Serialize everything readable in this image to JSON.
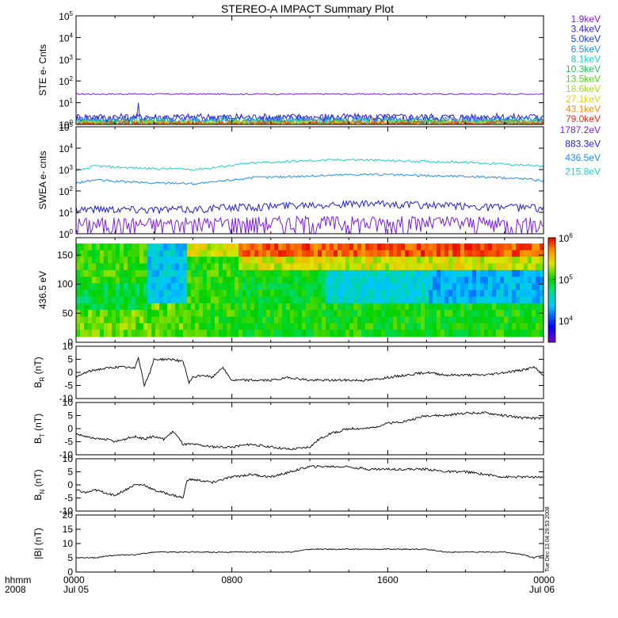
{
  "chart_data": {
    "type": "line",
    "title": "STEREO-A IMPACT Summary Plot",
    "x_axis": {
      "label_left": [
        "hhmm",
        "2008"
      ],
      "tick_times": [
        "0000",
        "0800",
        "1600",
        "0000"
      ],
      "tick_dates": [
        "Jul 05",
        "",
        "",
        "Jul 06"
      ],
      "range_hours": [
        0,
        24
      ]
    },
    "side_label": "Tue Dec 13 04:29:53 2008",
    "panels": [
      {
        "id": "ste",
        "ylabel": "STE e- Cnts",
        "scale": "log",
        "ylim": [
          1,
          100000
        ],
        "ticks": [
          {
            "b": "10",
            "e": "0"
          },
          {
            "b": "10",
            "e": "1"
          },
          {
            "b": "10",
            "e": "2"
          },
          {
            "b": "10",
            "e": "3"
          },
          {
            "b": "10",
            "e": "4"
          },
          {
            "b": "10",
            "e": "5"
          }
        ],
        "legend": [
          {
            "name": "1.9keV",
            "color": "#7a1fd8"
          },
          {
            "name": "3.4keV",
            "color": "#3a1fd0"
          },
          {
            "name": "5.0keV",
            "color": "#1f3ad8"
          },
          {
            "name": "6.5keV",
            "color": "#1f8fe0"
          },
          {
            "name": "8.1keV",
            "color": "#1fd0c8"
          },
          {
            "name": "10.3keV",
            "color": "#1fc85a"
          },
          {
            "name": "13.5keV",
            "color": "#4fd01f"
          },
          {
            "name": "18.6keV",
            "color": "#a8d81f"
          },
          {
            "name": "27.1keV",
            "color": "#e0d01f"
          },
          {
            "name": "43.1keV",
            "color": "#e8901f"
          },
          {
            "name": "79.0keV",
            "color": "#e0301f"
          }
        ],
        "series_levels": [
          25,
          2.2,
          1.8,
          1.5,
          1.3,
          1.2,
          1.1,
          1.05,
          1.02,
          1.01,
          1.0
        ]
      },
      {
        "id": "swea",
        "ylabel": "SWEA e- cnts",
        "scale": "log",
        "ylim": [
          1,
          100000
        ],
        "ticks": [
          {
            "b": "10",
            "e": "0"
          },
          {
            "b": "10",
            "e": "1"
          },
          {
            "b": "10",
            "e": "2"
          },
          {
            "b": "10",
            "e": "3"
          },
          {
            "b": "10",
            "e": "4"
          },
          {
            "b": "10",
            "e": "5"
          }
        ],
        "legend": [
          {
            "name": "1787.2eV",
            "color": "#7a1fd8"
          },
          {
            "name": "883.3eV",
            "color": "#1f1fc8"
          },
          {
            "name": "436.5eV",
            "color": "#1f8fe0"
          },
          {
            "name": "215.8eV",
            "color": "#1fd0c8"
          }
        ],
        "series": [
          {
            "name": "1787.2eV",
            "x": [
              0,
              2,
              4,
              6,
              8,
              10,
              12,
              14,
              16,
              18,
              20,
              22,
              24
            ],
            "y": [
              3,
              3,
              3,
              3,
              3.5,
              3.5,
              3.5,
              3.5,
              3.5,
              3.5,
              3.5,
              3,
              3
            ]
          },
          {
            "name": "883.3eV",
            "x": [
              0,
              2,
              4,
              6,
              8,
              10,
              12,
              14,
              16,
              18,
              20,
              22,
              24
            ],
            "y": [
              15,
              15,
              14,
              14,
              18,
              20,
              25,
              25,
              25,
              22,
              20,
              18,
              17
            ]
          },
          {
            "name": "436.5eV",
            "x": [
              0,
              0.5,
              1,
              2,
              3,
              4,
              5,
              6,
              7,
              8,
              9,
              10,
              11,
              12,
              13,
              14,
              15,
              16,
              17,
              18,
              19,
              20,
              21,
              22,
              23,
              24
            ],
            "y": [
              230,
              280,
              330,
              280,
              260,
              230,
              240,
              220,
              250,
              330,
              420,
              440,
              470,
              500,
              540,
              580,
              600,
              570,
              540,
              520,
              500,
              480,
              450,
              400,
              380,
              300
            ]
          },
          {
            "name": "215.8eV",
            "x": [
              0,
              0.5,
              1,
              2,
              3,
              4,
              5,
              6,
              7,
              8,
              9,
              10,
              11,
              12,
              13,
              14,
              15,
              16,
              17,
              18,
              19,
              20,
              21,
              22,
              23,
              24
            ],
            "y": [
              800,
              1100,
              1500,
              1300,
              1200,
              1100,
              1100,
              1000,
              1200,
              1600,
              2000,
              2200,
              2400,
              2600,
              2800,
              2900,
              2800,
              2600,
              2500,
              2400,
              2300,
              2200,
              2000,
              1800,
              1600,
              1400
            ]
          }
        ]
      },
      {
        "id": "pad",
        "ylabel": "436.5 eV",
        "type": "heatmap",
        "ylim": [
          0,
          180
        ],
        "ticks": [
          "0",
          "50",
          "100",
          "150"
        ],
        "colorbar": {
          "scale": "log",
          "min": 3000,
          "max": 1000000,
          "ticks": [
            {
              "b": "10",
              "e": "4"
            },
            {
              "b": "10",
              "e": "5"
            },
            {
              "b": "10",
              "e": "6"
            }
          ]
        }
      },
      {
        "id": "br",
        "ylabel_main": "B",
        "ylabel_sub": "R",
        "ylabel_unit": " (nT)",
        "ylim": [
          -10,
          10
        ],
        "ticks": [
          "-10",
          "-5",
          "0",
          "5",
          "10"
        ],
        "series": [
          {
            "name": "BR",
            "x": [
              0,
              0.5,
              1,
              1.5,
              2,
              2.5,
              3,
              3.2,
              3.5,
              3.8,
              4,
              4.5,
              5,
              5.5,
              5.8,
              6,
              6.5,
              7,
              7.5,
              8,
              9,
              10,
              11,
              12,
              13,
              14,
              15,
              16,
              17,
              18,
              19,
              20,
              21,
              22,
              23,
              23.5,
              24
            ],
            "y": [
              -2,
              0,
              1,
              1.5,
              2,
              2,
              1.5,
              6,
              -5,
              0,
              5,
              5,
              5,
              4,
              -4,
              -2,
              -1,
              -2,
              2,
              -3,
              -3,
              -3,
              -2,
              -3,
              -3,
              -3,
              -3,
              -2,
              -1,
              0,
              -1,
              -1,
              -1,
              0,
              1,
              2,
              -1
            ]
          }
        ]
      },
      {
        "id": "bt",
        "ylabel_main": "B",
        "ylabel_sub": "T",
        "ylabel_unit": " (nT)",
        "ylim": [
          -10,
          10
        ],
        "ticks": [
          "-10",
          "-5",
          "0",
          "5",
          "10"
        ],
        "series": [
          {
            "name": "BT",
            "x": [
              0,
              0.5,
              1,
              1.5,
              2,
              2.5,
              3,
              3.5,
              4,
              4.5,
              5,
              5.5,
              6,
              7,
              8,
              9,
              10,
              11,
              12,
              12.5,
              13,
              14,
              15,
              16,
              17,
              18,
              19,
              20,
              21,
              22,
              23,
              24
            ],
            "y": [
              -2,
              -3,
              -4,
              -4,
              -5,
              -4,
              -3,
              -4,
              -3,
              -4,
              -1,
              -6,
              -6,
              -7,
              -7,
              -6,
              -7,
              -8,
              -7,
              -4,
              -2,
              0,
              0,
              2,
              3,
              5,
              5,
              6,
              6,
              5,
              4,
              4
            ]
          }
        ]
      },
      {
        "id": "bn",
        "ylabel_main": "B",
        "ylabel_sub": "N",
        "ylabel_unit": " (nT)",
        "ylim": [
          -10,
          10
        ],
        "ticks": [
          "-10",
          "-5",
          "0",
          "5",
          "10"
        ],
        "series": [
          {
            "name": "BN",
            "x": [
              0,
              0.5,
              1,
              1.5,
              2,
              2.5,
              3,
              3.5,
              4,
              4.5,
              5,
              5.5,
              5.7,
              6,
              7,
              8,
              9,
              10,
              11,
              12,
              13,
              14,
              15,
              16,
              17,
              18,
              19,
              20,
              21,
              22,
              23,
              24
            ],
            "y": [
              -2,
              -3,
              -2,
              -3,
              -4,
              -2,
              0,
              0,
              -2,
              -3,
              -4,
              -5,
              2,
              2,
              1,
              3,
              4,
              3,
              5,
              7,
              7,
              7,
              6,
              6,
              6,
              6,
              5,
              5,
              4,
              3,
              3,
              3
            ]
          }
        ]
      },
      {
        "id": "bmag",
        "ylabel_main": "|B| (nT)",
        "ylim": [
          0,
          20
        ],
        "ticks": [
          "0",
          "5",
          "10",
          "15",
          "20"
        ],
        "series": [
          {
            "name": "|B|",
            "x": [
              0,
              1,
              2,
              3,
              4,
              5,
              6,
              7,
              8,
              9,
              10,
              11,
              12,
              13,
              14,
              15,
              16,
              17,
              18,
              19,
              20,
              21,
              22,
              23,
              23.5,
              24
            ],
            "y": [
              5,
              5,
              6,
              6,
              7,
              7,
              7,
              7,
              7,
              7,
              7,
              7,
              8,
              8,
              8,
              8,
              8,
              8,
              8,
              7,
              7,
              7,
              7,
              6,
              5,
              6
            ]
          }
        ]
      }
    ]
  }
}
